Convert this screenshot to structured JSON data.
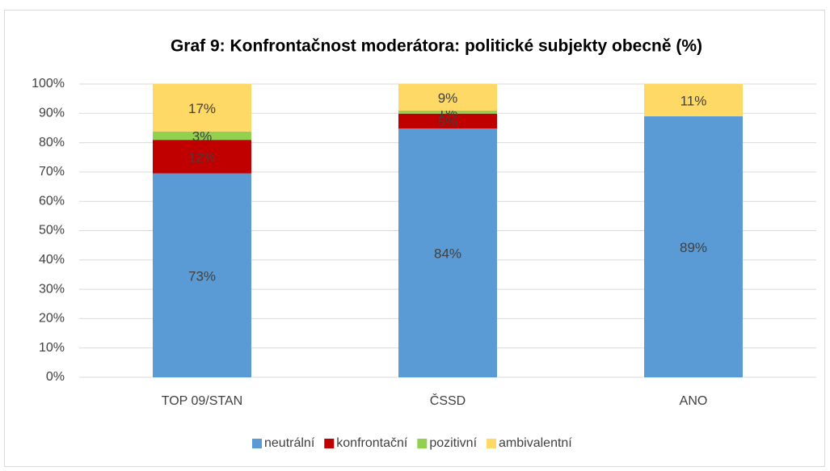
{
  "chart_data": {
    "type": "bar",
    "stacking": "percent",
    "title": "Graf 9: Konfrontačnost moderátora: politické subjekty obecně (%)",
    "categories": [
      "TOP 09/STAN",
      "ČSSD",
      "ANO"
    ],
    "series": [
      {
        "name": "neutrální",
        "color": "#5b9bd5",
        "values": [
          73,
          84,
          89
        ],
        "value_labels": [
          "73%",
          "84%",
          "89%"
        ]
      },
      {
        "name": "konfrontační",
        "color": "#c00000",
        "values": [
          12,
          5,
          null
        ],
        "value_labels": [
          "12%",
          "5%",
          null
        ]
      },
      {
        "name": "pozitivní",
        "color": "#92d050",
        "values": [
          3,
          1,
          null
        ],
        "value_labels": [
          "3%",
          "1%",
          null
        ]
      },
      {
        "name": "ambivalentní",
        "color": "#ffd966",
        "values": [
          17,
          9,
          11
        ],
        "value_labels": [
          "17%",
          "9%",
          "11%"
        ]
      }
    ],
    "ylim": [
      0,
      100
    ],
    "yticks": [
      {
        "value": 0,
        "label": "0%"
      },
      {
        "value": 10,
        "label": "10%"
      },
      {
        "value": 20,
        "label": "20%"
      },
      {
        "value": 30,
        "label": "30%"
      },
      {
        "value": 40,
        "label": "40%"
      },
      {
        "value": 50,
        "label": "50%"
      },
      {
        "value": 60,
        "label": "60%"
      },
      {
        "value": 70,
        "label": "70%"
      },
      {
        "value": 80,
        "label": "80%"
      },
      {
        "value": 90,
        "label": "90%"
      },
      {
        "value": 100,
        "label": "100%"
      }
    ],
    "grid": true,
    "legend": "bottom"
  }
}
